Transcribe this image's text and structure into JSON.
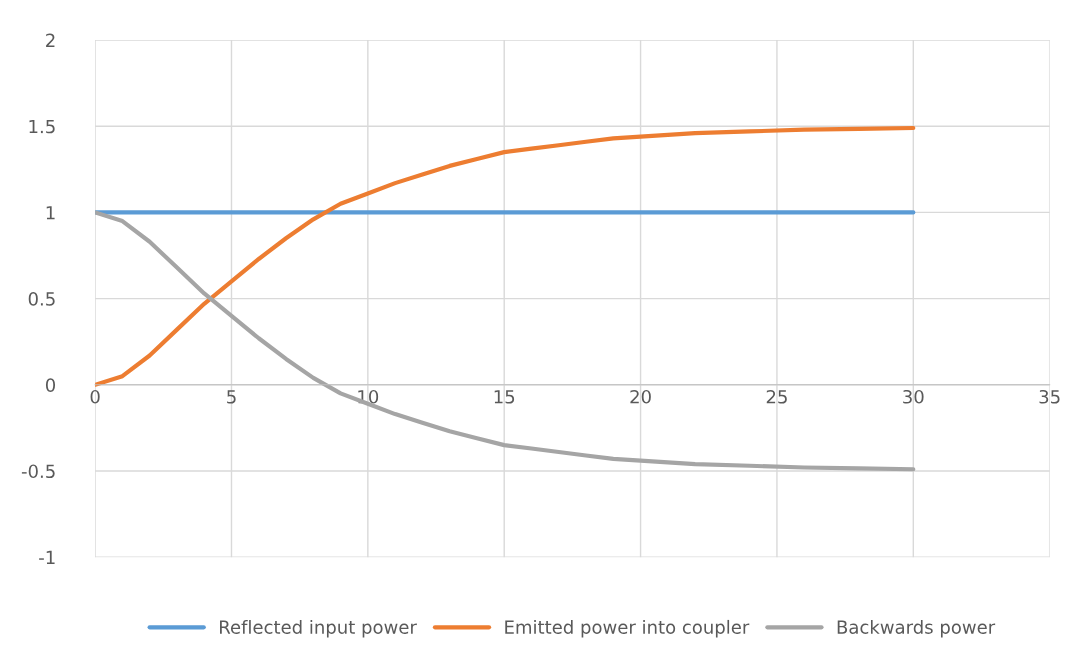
{
  "chart_data": {
    "type": "line",
    "xlim": [
      0,
      35
    ],
    "ylim": [
      -1,
      2
    ],
    "xticks": [
      0,
      5,
      10,
      15,
      20,
      25,
      30,
      35
    ],
    "yticks": [
      -1,
      -0.5,
      0,
      0.5,
      1,
      1.5,
      2
    ],
    "grid": true,
    "legend": "bottom",
    "marker": "none",
    "line_style": "solid",
    "series": [
      {
        "name": "Reflected input power",
        "color": "#5b9bd5",
        "x": [
          0,
          30
        ],
        "values": [
          1,
          1
        ]
      },
      {
        "name": "Emitted power into coupler",
        "color": "#ed7d31",
        "x": [
          0,
          1,
          2,
          3,
          4,
          5,
          6,
          7,
          8,
          9,
          10,
          11,
          12,
          13,
          14,
          15,
          16,
          17,
          18,
          19,
          20,
          22,
          24,
          26,
          28,
          30
        ],
        "values": [
          0,
          0.05,
          0.17,
          0.32,
          0.47,
          0.6,
          0.73,
          0.85,
          0.96,
          1.05,
          1.11,
          1.17,
          1.22,
          1.27,
          1.31,
          1.35,
          1.37,
          1.39,
          1.41,
          1.43,
          1.44,
          1.46,
          1.47,
          1.48,
          1.485,
          1.49
        ]
      },
      {
        "name": "Backwards power",
        "color": "#a5a5a5",
        "x": [
          0,
          1,
          2,
          3,
          4,
          5,
          6,
          7,
          8,
          9,
          10,
          11,
          12,
          13,
          14,
          15,
          16,
          17,
          18,
          19,
          20,
          22,
          24,
          26,
          28,
          30
        ],
        "values": [
          1,
          0.95,
          0.83,
          0.68,
          0.53,
          0.4,
          0.27,
          0.15,
          0.04,
          -0.05,
          -0.11,
          -0.17,
          -0.22,
          -0.27,
          -0.31,
          -0.35,
          -0.37,
          -0.39,
          -0.41,
          -0.43,
          -0.44,
          -0.46,
          -0.47,
          -0.48,
          -0.485,
          -0.49
        ]
      }
    ]
  }
}
